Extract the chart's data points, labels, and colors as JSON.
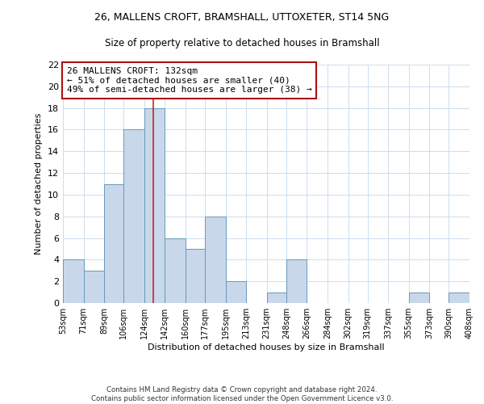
{
  "title1": "26, MALLENS CROFT, BRAMSHALL, UTTOXETER, ST14 5NG",
  "title2": "Size of property relative to detached houses in Bramshall",
  "xlabel": "Distribution of detached houses by size in Bramshall",
  "ylabel": "Number of detached properties",
  "bin_labels": [
    "53sqm",
    "71sqm",
    "89sqm",
    "106sqm",
    "124sqm",
    "142sqm",
    "160sqm",
    "177sqm",
    "195sqm",
    "213sqm",
    "231sqm",
    "248sqm",
    "266sqm",
    "284sqm",
    "302sqm",
    "319sqm",
    "337sqm",
    "355sqm",
    "373sqm",
    "390sqm",
    "408sqm"
  ],
  "bin_edges": [
    53,
    71,
    89,
    106,
    124,
    142,
    160,
    177,
    195,
    213,
    231,
    248,
    266,
    284,
    302,
    319,
    337,
    355,
    373,
    390,
    408
  ],
  "bar_heights": [
    4,
    3,
    11,
    16,
    18,
    6,
    5,
    8,
    2,
    0,
    1,
    4,
    0,
    0,
    0,
    0,
    0,
    1,
    0,
    1
  ],
  "bar_color": "#c8d8ea",
  "bar_edge_color": "#6699bb",
  "red_line_x": 132,
  "ylim": [
    0,
    22
  ],
  "yticks": [
    0,
    2,
    4,
    6,
    8,
    10,
    12,
    14,
    16,
    18,
    20,
    22
  ],
  "annotation_text": "26 MALLENS CROFT: 132sqm\n← 51% of detached houses are smaller (40)\n49% of semi-detached houses are larger (38) →",
  "annotation_box_color": "#ffffff",
  "annotation_border_color": "#aa1111",
  "footer1": "Contains HM Land Registry data © Crown copyright and database right 2024.",
  "footer2": "Contains public sector information licensed under the Open Government Licence v3.0.",
  "bg_color": "#ffffff",
  "grid_color": "#ccddee"
}
